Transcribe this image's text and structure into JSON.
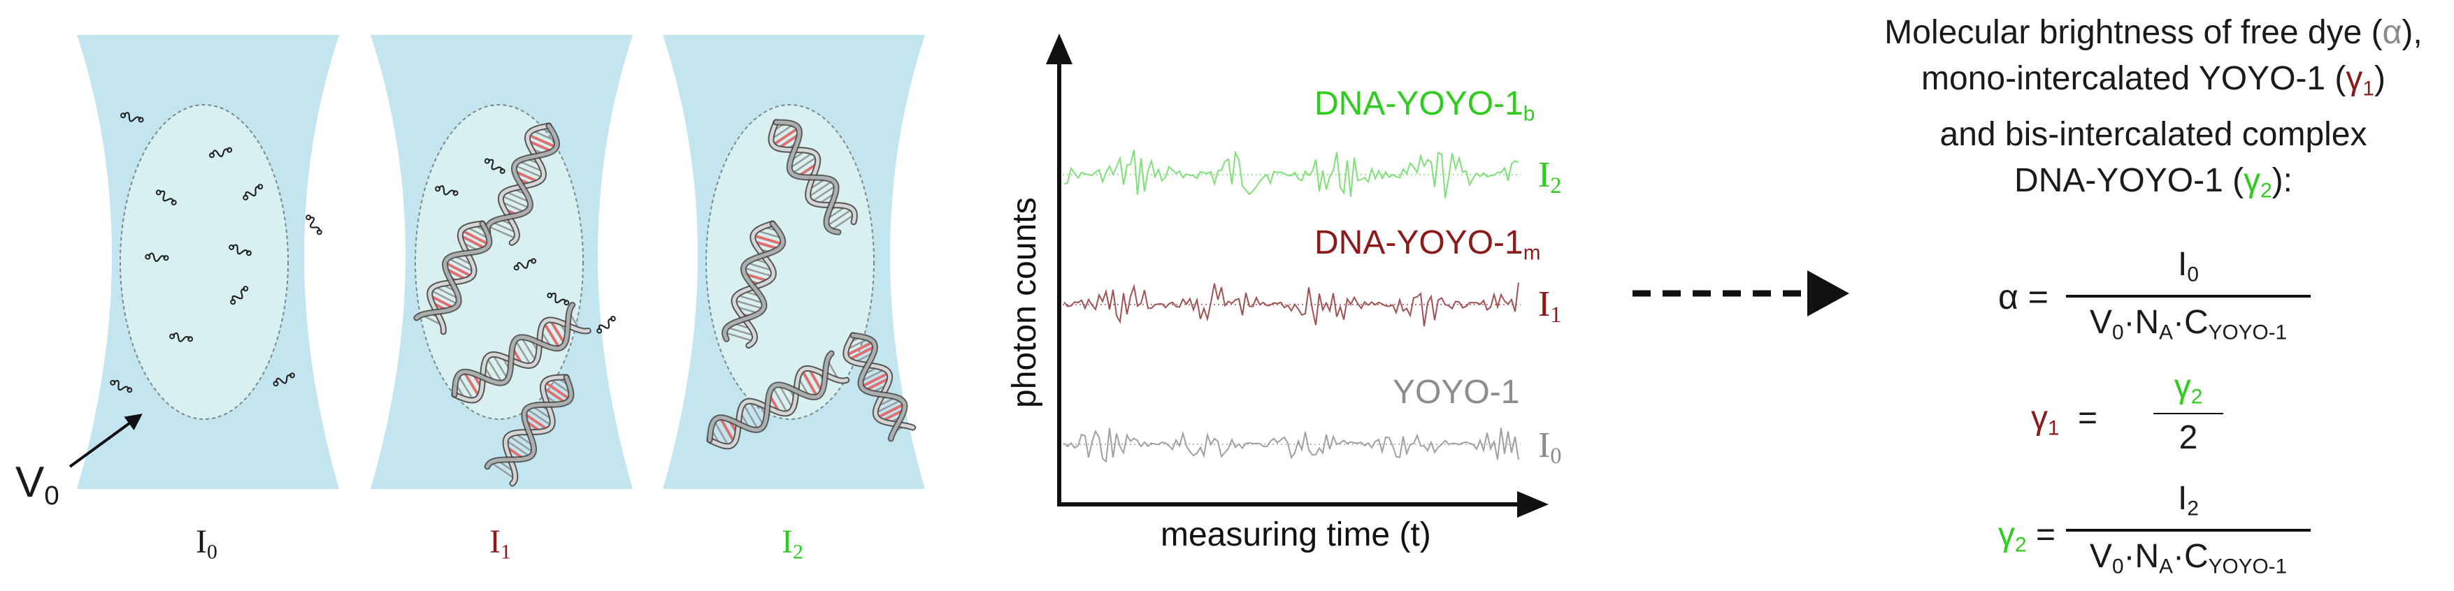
{
  "colors": {
    "black": "#1a1a1a",
    "green": "#2ecc1f",
    "darkred": "#8b1a1a",
    "gray": "#8c8c8c",
    "volume_fill": "#bfe4ee",
    "focus_fill": "#d9f0f0",
    "trace_green": "#7fe07a",
    "trace_red": "#a05252",
    "trace_gray": "#a0a0a0",
    "dna_red": "#e07070"
  },
  "panels": [
    {
      "label_main": "I",
      "label_sub": "0",
      "color": "#1a1a1a",
      "contents": [
        "free-dye"
      ]
    },
    {
      "label_main": "I",
      "label_sub": "1",
      "color": "#8b1a1a",
      "contents": [
        "free-dye",
        "dna-helix"
      ]
    },
    {
      "label_main": "I",
      "label_sub": "2",
      "color": "#2ecc1f",
      "contents": [
        "dna-helix"
      ]
    }
  ],
  "volume_label": {
    "main": "V",
    "sub": "0"
  },
  "plot": {
    "ylabel": "photon counts",
    "xlabel": "measuring time (t)",
    "traces": [
      {
        "name_main": "DNA-YOYO-1",
        "name_sub": "b",
        "intensity_main": "I",
        "intensity_sub": "2",
        "color": "#2ecc1f",
        "trace_color": "#7fe07a"
      },
      {
        "name_main": "DNA-YOYO-1",
        "name_sub": "m",
        "intensity_main": "I",
        "intensity_sub": "1",
        "color": "#8b1a1a",
        "trace_color": "#a05252"
      },
      {
        "name_main": "YOYO-1",
        "name_sub": "",
        "intensity_main": "I",
        "intensity_sub": "0",
        "color": "#8c8c8c",
        "trace_color": "#a0a0a0"
      }
    ]
  },
  "description": {
    "line1": "Molecular brightness of free dye (",
    "alpha": "α",
    "line1_end": "),",
    "line2": "mono-intercalated YOYO-1 (",
    "gamma": "γ",
    "gamma1_sub": "1",
    "line2_end": ")",
    "line3": "and bis-intercalated complex",
    "line4": "DNA-YOYO-1 (",
    "gamma2_sub": "2",
    "line4_end": "):"
  },
  "equations": {
    "alpha": {
      "lhs": "α =",
      "num_main": "I",
      "num_sub": "0",
      "den_text": "V",
      "den_sub1": "0",
      "den_mid": "·N",
      "den_sub2": "A",
      "den_mid2": "·C",
      "den_sub3": "YOYO-1"
    },
    "gamma1": {
      "lhs_main": "γ",
      "lhs_sub": "1",
      "eq": "=",
      "num_main": "γ",
      "num_sub": "2",
      "den": "2"
    },
    "gamma2": {
      "lhs_main": "γ",
      "lhs_sub": "2",
      "eq": "=",
      "num_main": "I",
      "num_sub": "2",
      "den_text": "V",
      "den_sub1": "0",
      "den_mid": "·N",
      "den_sub2": "A",
      "den_mid2": "·C",
      "den_sub3": "YOYO-1"
    }
  }
}
